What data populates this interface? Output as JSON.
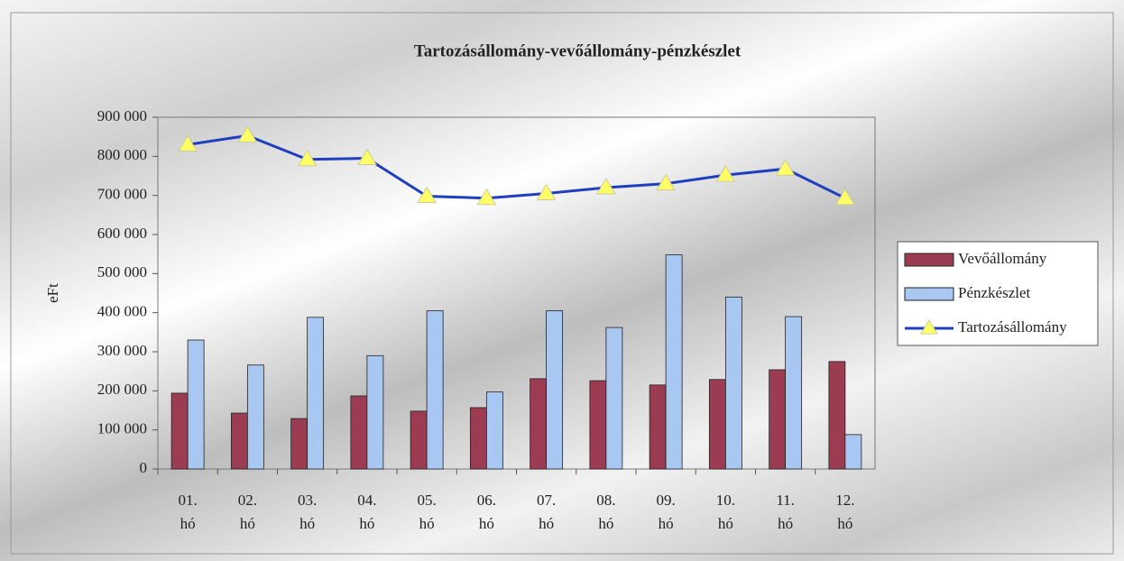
{
  "chart_data": {
    "type": "bar_line",
    "title": "Tartozásállomány-vevőállomány-pénzkészlet",
    "y_label": "eFt",
    "categories": [
      "01.\nhó",
      "02.\nhó",
      "03.\nhó",
      "04.\nhó",
      "05.\nhó",
      "06.\nhó",
      "07.\nhó",
      "08.\nhó",
      "09.\nhó",
      "10.\nhó",
      "11.\nhó",
      "12.\nhó"
    ],
    "series": [
      {
        "name": "Vevőállomány",
        "type": "bar",
        "color": "#9b3c52",
        "values": [
          194000,
          143000,
          129000,
          187000,
          148000,
          157000,
          231000,
          226000,
          215000,
          229000,
          254000,
          275000
        ]
      },
      {
        "name": "Pénzkészlet",
        "type": "bar",
        "color": "#a8c8f2",
        "values": [
          330000,
          266000,
          388000,
          290000,
          405000,
          197000,
          405000,
          362000,
          548000,
          440000,
          390000,
          88000
        ]
      },
      {
        "name": "Tartozásállomány",
        "type": "line",
        "color": "#1f3fbf",
        "marker_color": "#ffff66",
        "values": [
          830000,
          853000,
          792000,
          795000,
          698000,
          693000,
          705000,
          720000,
          730000,
          752000,
          768000,
          693000
        ]
      }
    ],
    "ylim": [
      0,
      900000
    ],
    "yticks": [
      0,
      {
        "value": 100000,
        "label": "100 000"
      },
      {
        "value": 200000,
        "label": "200 000"
      },
      {
        "value": 300000,
        "label": "300 000"
      },
      {
        "value": 400000,
        "label": "400 000"
      },
      {
        "value": 500000,
        "label": "500 000"
      },
      {
        "value": 600000,
        "label": "600 000"
      },
      {
        "value": 700000,
        "label": "700 000"
      },
      {
        "value": 800000,
        "label": "800 000"
      },
      {
        "value": 900000,
        "label": "900 000"
      }
    ],
    "legend": "right"
  }
}
